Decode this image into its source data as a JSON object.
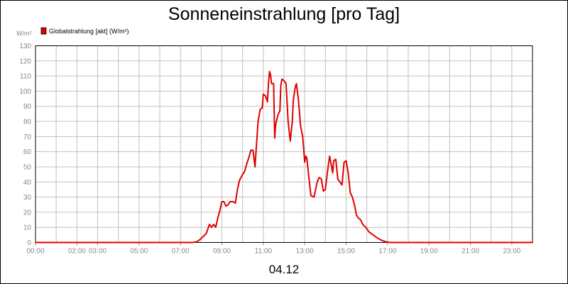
{
  "chart_data": {
    "type": "line",
    "title": "Sonneneinstrahlung [pro Tag]",
    "ylabel": "W/m²",
    "xlabel": "04.12",
    "ylim": [
      0,
      130
    ],
    "y_ticks": [
      0,
      10,
      20,
      30,
      40,
      50,
      60,
      70,
      80,
      90,
      100,
      110,
      120,
      130
    ],
    "x_range_hours": [
      0,
      24
    ],
    "x_tick_hours": [
      0,
      2,
      3,
      5,
      7,
      9,
      11,
      13,
      15,
      17,
      19,
      21,
      23
    ],
    "x_tick_labels": [
      "00:00",
      "02:00",
      "03:00",
      "05:00",
      "07:00",
      "09:00",
      "11:00",
      "13:00",
      "15:00",
      "17:00",
      "19:00",
      "21:00",
      "23:00"
    ],
    "grid": true,
    "legend_position": "top-left",
    "series": [
      {
        "name": "Globalstrahlung [akt] (W/m²)",
        "color": "#e00000",
        "points": [
          [
            0,
            0
          ],
          [
            7.6,
            0
          ],
          [
            7.8,
            0.5
          ],
          [
            7.95,
            2
          ],
          [
            8.1,
            4
          ],
          [
            8.25,
            6
          ],
          [
            8.4,
            12
          ],
          [
            8.5,
            10
          ],
          [
            8.6,
            12
          ],
          [
            8.7,
            10
          ],
          [
            8.8,
            16
          ],
          [
            8.9,
            21
          ],
          [
            9.0,
            27
          ],
          [
            9.1,
            27
          ],
          [
            9.2,
            24
          ],
          [
            9.3,
            25
          ],
          [
            9.4,
            27
          ],
          [
            9.55,
            27
          ],
          [
            9.65,
            26
          ],
          [
            9.75,
            35
          ],
          [
            9.85,
            41
          ],
          [
            10.0,
            45
          ],
          [
            10.1,
            47
          ],
          [
            10.2,
            52
          ],
          [
            10.3,
            56
          ],
          [
            10.4,
            61
          ],
          [
            10.5,
            61
          ],
          [
            10.6,
            50
          ],
          [
            10.65,
            60
          ],
          [
            10.75,
            80
          ],
          [
            10.85,
            88
          ],
          [
            10.95,
            89
          ],
          [
            11.0,
            98
          ],
          [
            11.1,
            97
          ],
          [
            11.2,
            93
          ],
          [
            11.25,
            105
          ],
          [
            11.3,
            113
          ],
          [
            11.35,
            111
          ],
          [
            11.4,
            105
          ],
          [
            11.5,
            105
          ],
          [
            11.55,
            69
          ],
          [
            11.6,
            78
          ],
          [
            11.7,
            84
          ],
          [
            11.8,
            87
          ],
          [
            11.85,
            104
          ],
          [
            11.9,
            108
          ],
          [
            12.0,
            107
          ],
          [
            12.1,
            105
          ],
          [
            12.2,
            80
          ],
          [
            12.3,
            67
          ],
          [
            12.4,
            80
          ],
          [
            12.45,
            94
          ],
          [
            12.55,
            103
          ],
          [
            12.6,
            105
          ],
          [
            12.7,
            94
          ],
          [
            12.8,
            77
          ],
          [
            12.9,
            70
          ],
          [
            13.0,
            53
          ],
          [
            13.05,
            57
          ],
          [
            13.1,
            56
          ],
          [
            13.2,
            43
          ],
          [
            13.3,
            31
          ],
          [
            13.45,
            30
          ],
          [
            13.6,
            40
          ],
          [
            13.7,
            43
          ],
          [
            13.8,
            42
          ],
          [
            13.9,
            34
          ],
          [
            14.0,
            35
          ],
          [
            14.1,
            47
          ],
          [
            14.2,
            57
          ],
          [
            14.3,
            50
          ],
          [
            14.35,
            46
          ],
          [
            14.4,
            54
          ],
          [
            14.5,
            55
          ],
          [
            14.6,
            42
          ],
          [
            14.7,
            40
          ],
          [
            14.8,
            38
          ],
          [
            14.9,
            53
          ],
          [
            15.0,
            54
          ],
          [
            15.1,
            46
          ],
          [
            15.2,
            33
          ],
          [
            15.3,
            30
          ],
          [
            15.4,
            25
          ],
          [
            15.5,
            18
          ],
          [
            15.6,
            16
          ],
          [
            15.7,
            15
          ],
          [
            15.8,
            12
          ],
          [
            15.95,
            10
          ],
          [
            16.1,
            7
          ],
          [
            16.3,
            5
          ],
          [
            16.5,
            3
          ],
          [
            16.7,
            1.5
          ],
          [
            16.9,
            0.5
          ],
          [
            17.1,
            0
          ],
          [
            24,
            0
          ]
        ]
      }
    ]
  }
}
